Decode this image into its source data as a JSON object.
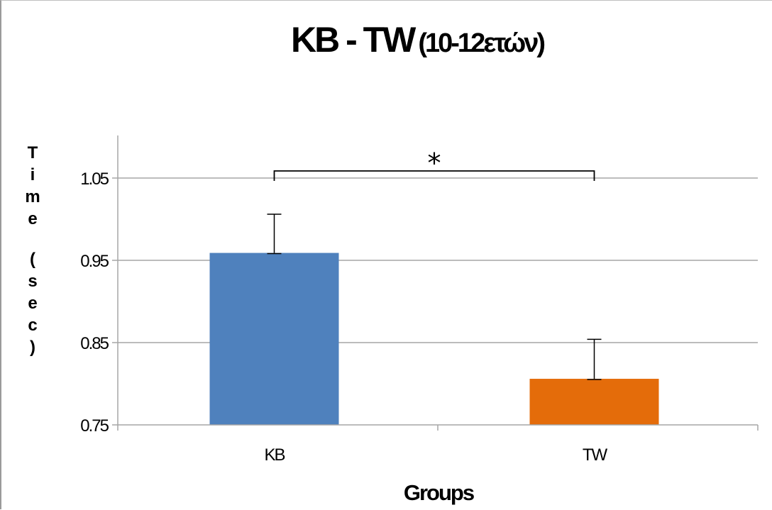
{
  "chart_data": {
    "type": "bar",
    "title": "KB - TW",
    "subtitle": "(10-12ετών)",
    "xlabel": "Groups",
    "ylabel": "Time (sec)",
    "categories": [
      "KB",
      "TW"
    ],
    "values": [
      0.959,
      0.806
    ],
    "errors": [
      0.047,
      0.048
    ],
    "ylim": [
      0.75,
      1.1
    ],
    "yticks": [
      "0.75",
      "0.85",
      "0.95",
      "1.05"
    ],
    "grid": true,
    "legend": "none",
    "significance_marker": "*",
    "colors": {
      "KB": "#4f81bd",
      "TW": "#e46c0a",
      "grid": "#a6a6a6",
      "axis": "#a6a6a6"
    }
  }
}
